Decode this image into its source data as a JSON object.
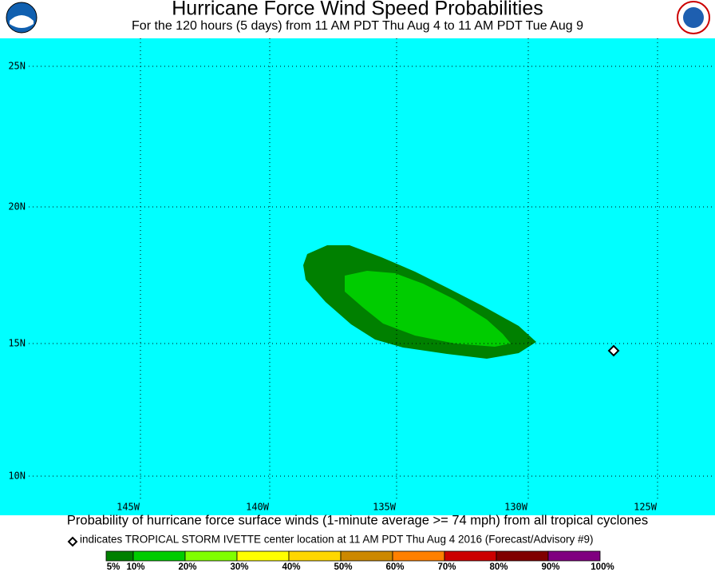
{
  "header": {
    "title": "Hurricane Force Wind Speed Probabilities",
    "subtitle": "For the 120 hours (5 days) from 11 AM PDT Thu Aug 4 to 11 AM PDT Tue Aug 9"
  },
  "map": {
    "lat_labels": [
      "25N",
      "20N",
      "15N",
      "10N"
    ],
    "lon_labels": [
      "145W",
      "140W",
      "135W",
      "130W",
      "125W"
    ]
  },
  "caption": "Probability of hurricane force surface winds (1-minute average >= 74 mph) from all tropical cyclones",
  "note": "indicates TROPICAL STORM IVETTE center location at 11 AM PDT Thu Aug 4 2016 (Forecast/Advisory #9)",
  "legend": {
    "labels": [
      "5%",
      "10%",
      "20%",
      "30%",
      "40%",
      "50%",
      "60%",
      "70%",
      "80%",
      "90%",
      "100%"
    ],
    "colors": [
      "#008000",
      "#00cc00",
      "#80ff00",
      "#ffff00",
      "#ffd700",
      "#cc8800",
      "#ff8000",
      "#cc0000",
      "#800000",
      "#800080"
    ]
  }
}
